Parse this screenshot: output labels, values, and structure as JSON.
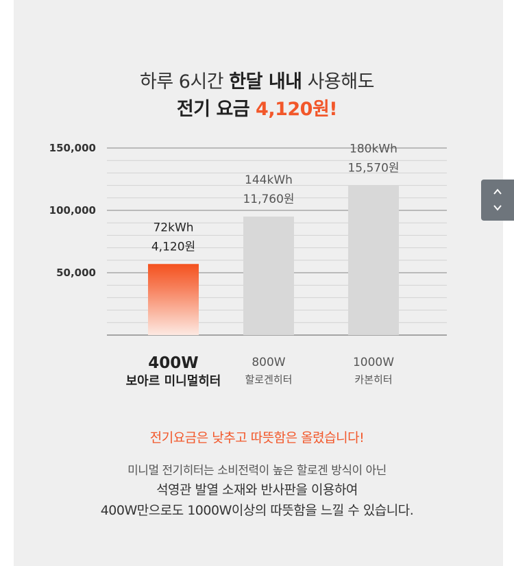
{
  "headline": {
    "line1_pre": "하루 6시간 ",
    "line1_bold": "한달 내내",
    "line1_post": " 사용해도",
    "line2_pre": "전기 요금 ",
    "line2_accent": "4,120원!"
  },
  "chart_data": {
    "type": "bar",
    "categories": [
      "400W",
      "800W",
      "1000W"
    ],
    "category_sublabels": [
      "보아르 미니멀히터",
      "할로겐히터",
      "카본히터"
    ],
    "values": [
      57000,
      95000,
      120000
    ],
    "energy_labels": [
      "72kWh",
      "144kWh",
      "180kWh"
    ],
    "cost_labels": [
      "4,120원",
      "11,760원",
      "15,570원"
    ],
    "yticks": [
      "50,000",
      "100,000",
      "150,000"
    ],
    "ytick_values": [
      50000,
      100000,
      150000
    ],
    "ylim": [
      0,
      150000
    ],
    "grid": true,
    "colors": {
      "highlight_top": "#f4511e",
      "highlight_bottom": "#fde9e2",
      "other": "#d8d8d8",
      "grid_major": "#9a9a9a",
      "grid_minor": "#d2d2d2"
    }
  },
  "bottom": {
    "highlight": "전기요금은 낮추고 따뜻함은 올렸습니다!",
    "desc1": "미니멀 전기히터는 소비전력이 높은 할로겐 방식이 아닌",
    "desc2": "석영관 발열 소재와 반사판을 이용하여",
    "desc3": "400W만으로도 1000W이상의 따뜻함을 느낄 수 있습니다."
  },
  "scroll": {
    "up_icon": "chevron-up-icon",
    "down_icon": "chevron-down-icon"
  }
}
